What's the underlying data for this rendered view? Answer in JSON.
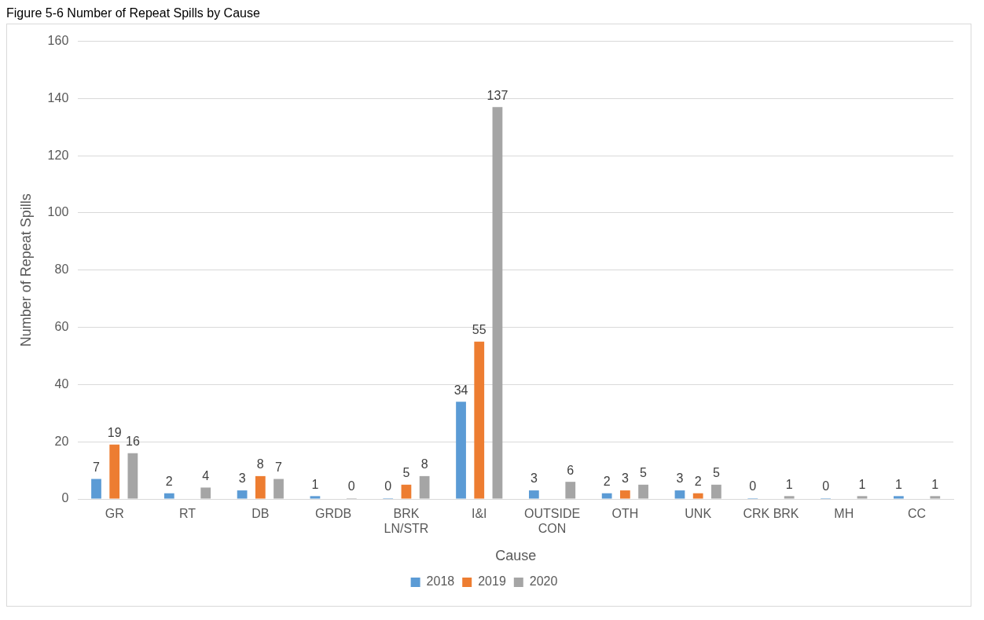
{
  "chart_data": {
    "type": "bar",
    "title": "Figure 5-6 Number of Repeat Spills by Cause",
    "xlabel": "Cause",
    "ylabel": "Number of Repeat Spills",
    "categories": [
      "GR",
      "RT",
      "DB",
      "GRDB",
      "BRK LN/STR",
      "I&I",
      "OUTSIDE CON",
      "OTH",
      "UNK",
      "CRK BRK",
      "MH",
      "CC"
    ],
    "series": [
      {
        "name": "2018",
        "color": "#5b9bd5",
        "values": [
          7,
          2,
          3,
          1,
          0,
          34,
          3,
          2,
          3,
          0,
          0,
          1
        ]
      },
      {
        "name": "2019",
        "color": "#ed7d31",
        "values": [
          19,
          null,
          8,
          null,
          5,
          55,
          null,
          3,
          2,
          null,
          null,
          null
        ]
      },
      {
        "name": "2020",
        "color": "#a5a5a5",
        "values": [
          16,
          4,
          7,
          0,
          8,
          137,
          6,
          5,
          5,
          1,
          1,
          1
        ]
      }
    ],
    "ylim": [
      0,
      160
    ],
    "yticks": [
      0,
      20,
      40,
      60,
      80,
      100,
      120,
      140,
      160
    ],
    "grid": "y",
    "legend": "bottom",
    "data_labels": true
  }
}
